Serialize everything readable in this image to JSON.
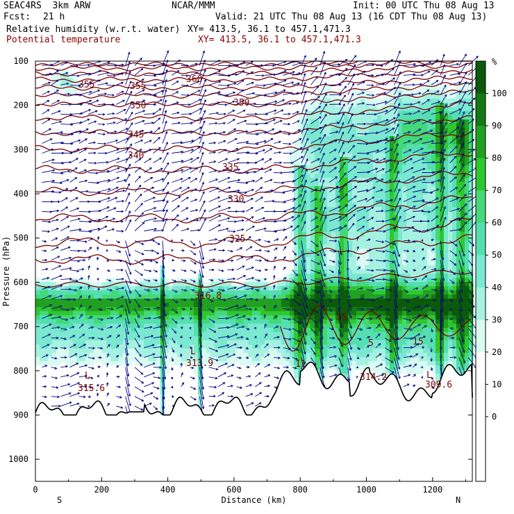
{
  "header": {
    "model": "SEAC4RS  3km ARW",
    "org": "NCAR/MMM",
    "init": "Init: 00 UTC Thu 08 Aug 13",
    "fcst_label": "Fcst:",
    "fcst_value": "21 h",
    "valid": "Valid: 21 UTC Thu 08 Aug 13 (16 CDT Thu 08 Aug 13)",
    "field1_name": "Relative humidity (w.r.t. water)",
    "field1_xy": "XY= 413.5, 36.1 to 457.1,471.3",
    "field2_name": "Potential temperature",
    "field2_xy": "XY= 413.5, 36.1 to 457.1,471.3"
  },
  "colors": {
    "theta_contour": "#7a0000",
    "terrain": "#000000",
    "wind_vector": "#00007f",
    "rh_levels": [
      "#ffffff",
      "#ffffff",
      "#ffffff",
      "#ffffff",
      "#d9fbf2",
      "#a6f2e0",
      "#7be8d0",
      "#55dfb0",
      "#44d87a",
      "#2ec82e",
      "#22a022",
      "#137a13",
      "#0b5a0b"
    ]
  },
  "chart_data": {
    "type": "cross-section",
    "xlabel": "Distance (km)",
    "ylabel": "Pressure (hPa)",
    "xlim": [
      0,
      1320
    ],
    "ylim": [
      1050,
      100
    ],
    "x_ticks": [
      "0",
      "200",
      "400",
      "600",
      "800",
      "1000",
      "1200"
    ],
    "y_ticks": [
      "100",
      "200",
      "300",
      "400",
      "500",
      "600",
      "700",
      "800",
      "900",
      "1000"
    ],
    "end_labels": {
      "left": "S",
      "right": "N"
    },
    "colorbar": {
      "unit": "%",
      "labels": [
        "100",
        "90",
        "80",
        "70",
        "60",
        "50",
        "40",
        "30",
        "20",
        "10",
        "0"
      ]
    },
    "theta_contours": [
      {
        "value": "355",
        "label_positions": [
          [
            40,
            155
          ],
          [
            180,
            160
          ]
        ]
      },
      {
        "value": "360",
        "label_positions": [
          [
            350,
            146
          ]
        ]
      },
      {
        "value": "350",
        "label_positions": [
          [
            180,
            197
          ],
          [
            545,
            193
          ]
        ]
      },
      {
        "value": "345",
        "label_positions": [
          [
            180,
            258
          ]
        ]
      },
      {
        "value": "340",
        "label_positions": [
          [
            180,
            312
          ]
        ]
      },
      {
        "value": "335",
        "label_positions": [
          [
            580,
            360
          ]
        ]
      },
      {
        "value": "330",
        "label_positions": [
          [
            550,
            403
          ]
        ]
      },
      {
        "value": "325",
        "label_positions": [
          [
            540,
            482
          ]
        ]
      }
    ],
    "low_markers": [
      "L",
      "L",
      "L",
      "L"
    ],
    "annotations": [
      "316.8",
      "313.9",
      "315.6",
      "314.2",
      "309.6",
      "15",
      "15",
      "5",
      "11"
    ]
  }
}
